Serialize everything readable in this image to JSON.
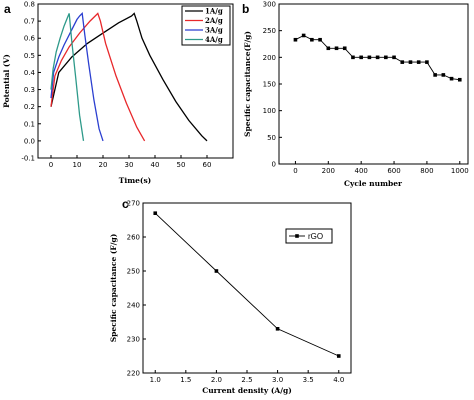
{
  "chart_data": [
    {
      "panel": "a",
      "type": "line",
      "xlabel": "Time(s)",
      "ylabel": "Potential (V)",
      "xlim": [
        -5,
        70
      ],
      "ylim": [
        -0.1,
        0.8
      ],
      "xticks": [
        0,
        10,
        20,
        30,
        40,
        50,
        60
      ],
      "yticks": [
        -0.1,
        0.0,
        0.1,
        0.2,
        0.3,
        0.4,
        0.5,
        0.6,
        0.7,
        0.8
      ],
      "legend_position": "top-right",
      "series": [
        {
          "name": "1A/g",
          "color": "#000000",
          "x": [
            0,
            3,
            8,
            14,
            20,
            26,
            31,
            32,
            33,
            35,
            38,
            43,
            48,
            53,
            58,
            60
          ],
          "y": [
            0.2,
            0.4,
            0.49,
            0.57,
            0.63,
            0.69,
            0.73,
            0.745,
            0.7,
            0.6,
            0.5,
            0.36,
            0.23,
            0.12,
            0.03,
            0.0
          ]
        },
        {
          "name": "2A/g",
          "color": "#e8282b",
          "x": [
            0,
            1.5,
            4,
            7,
            11,
            15,
            17,
            18,
            19,
            21,
            25,
            29,
            33,
            36
          ],
          "y": [
            0.2,
            0.38,
            0.47,
            0.55,
            0.63,
            0.7,
            0.73,
            0.745,
            0.7,
            0.57,
            0.38,
            0.22,
            0.08,
            0.0
          ]
        },
        {
          "name": "3A/g",
          "color": "#2b3fd0",
          "x": [
            0,
            1,
            3,
            5,
            8,
            10,
            11,
            12,
            13,
            14.5,
            16.5,
            18.5,
            20
          ],
          "y": [
            0.25,
            0.4,
            0.49,
            0.56,
            0.65,
            0.71,
            0.73,
            0.745,
            0.62,
            0.45,
            0.24,
            0.07,
            0.0
          ]
        },
        {
          "name": "4A/g",
          "color": "#2e9a8a",
          "x": [
            0,
            0.8,
            2,
            3.5,
            5,
            6.3,
            7,
            8,
            9.5,
            11,
            12.5
          ],
          "y": [
            0.3,
            0.42,
            0.52,
            0.6,
            0.67,
            0.72,
            0.745,
            0.58,
            0.37,
            0.15,
            0.0
          ]
        }
      ]
    },
    {
      "panel": "b",
      "type": "line",
      "xlabel": "Cycle number",
      "ylabel": "Specific capacitance(F/g)",
      "xlim": [
        -100,
        1050
      ],
      "ylim": [
        0,
        300
      ],
      "xticks": [
        0,
        200,
        400,
        600,
        800,
        1000
      ],
      "yticks": [
        0,
        50,
        100,
        150,
        200,
        250,
        300
      ],
      "series": [
        {
          "name": "",
          "color": "#000000",
          "x": [
            0,
            50,
            100,
            150,
            200,
            250,
            300,
            350,
            400,
            450,
            500,
            550,
            600,
            650,
            700,
            750,
            800,
            850,
            900,
            950,
            1000
          ],
          "y": [
            233,
            241,
            233,
            233,
            217,
            217,
            217,
            200,
            200,
            200,
            200,
            200,
            200,
            191,
            191,
            191,
            191,
            167,
            167,
            160,
            158
          ]
        }
      ]
    },
    {
      "panel": "c",
      "type": "line",
      "xlabel": "Current density (A/g)",
      "ylabel": "Specific capacitance (F/g)",
      "xlim": [
        0.8,
        4.2
      ],
      "ylim": [
        220,
        270
      ],
      "xticks": [
        "1.0",
        "1.5",
        "2.0",
        "2.5",
        "3.0",
        "3.5",
        "4.0"
      ],
      "yticks": [
        220,
        230,
        240,
        250,
        260,
        270
      ],
      "legend_position": "top-right",
      "series": [
        {
          "name": "rGO",
          "color": "#000000",
          "x": [
            1.0,
            2.0,
            3.0,
            4.0
          ],
          "y": [
            267,
            250,
            233,
            225
          ]
        }
      ]
    }
  ]
}
